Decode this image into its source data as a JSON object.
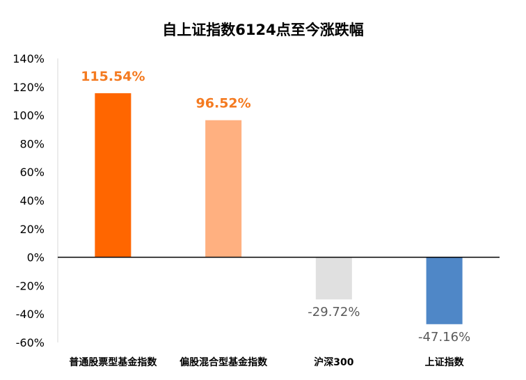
{
  "chart_data": {
    "type": "bar",
    "title": "自上证指数6124点至今涨跌幅",
    "xlabel": "",
    "ylabel": "",
    "categories": [
      "普通股票型基金指数",
      "偏股混合型基金指数",
      "沪深300",
      "上证指数"
    ],
    "values": [
      115.54,
      96.52,
      -29.72,
      -47.16
    ],
    "data_labels": [
      "115.54%",
      "96.52%",
      "-29.72%",
      "-47.16%"
    ],
    "bar_colors": [
      "#ff6600",
      "#ffb080",
      "#e0e0e0",
      "#4f87c7"
    ],
    "label_colors": [
      "#f47a20",
      "#f47a20",
      "#595959",
      "#595959"
    ],
    "ylim": [
      -60,
      140
    ],
    "yticks": [
      140,
      120,
      100,
      80,
      60,
      40,
      20,
      0,
      -20,
      -40,
      -60
    ],
    "ytick_labels": [
      "140%",
      "120%",
      "100%",
      "80%",
      "60%",
      "40%",
      "20%",
      "0%",
      "-20%",
      "-40%",
      "-60%"
    ],
    "grid": false,
    "legend": "none"
  }
}
